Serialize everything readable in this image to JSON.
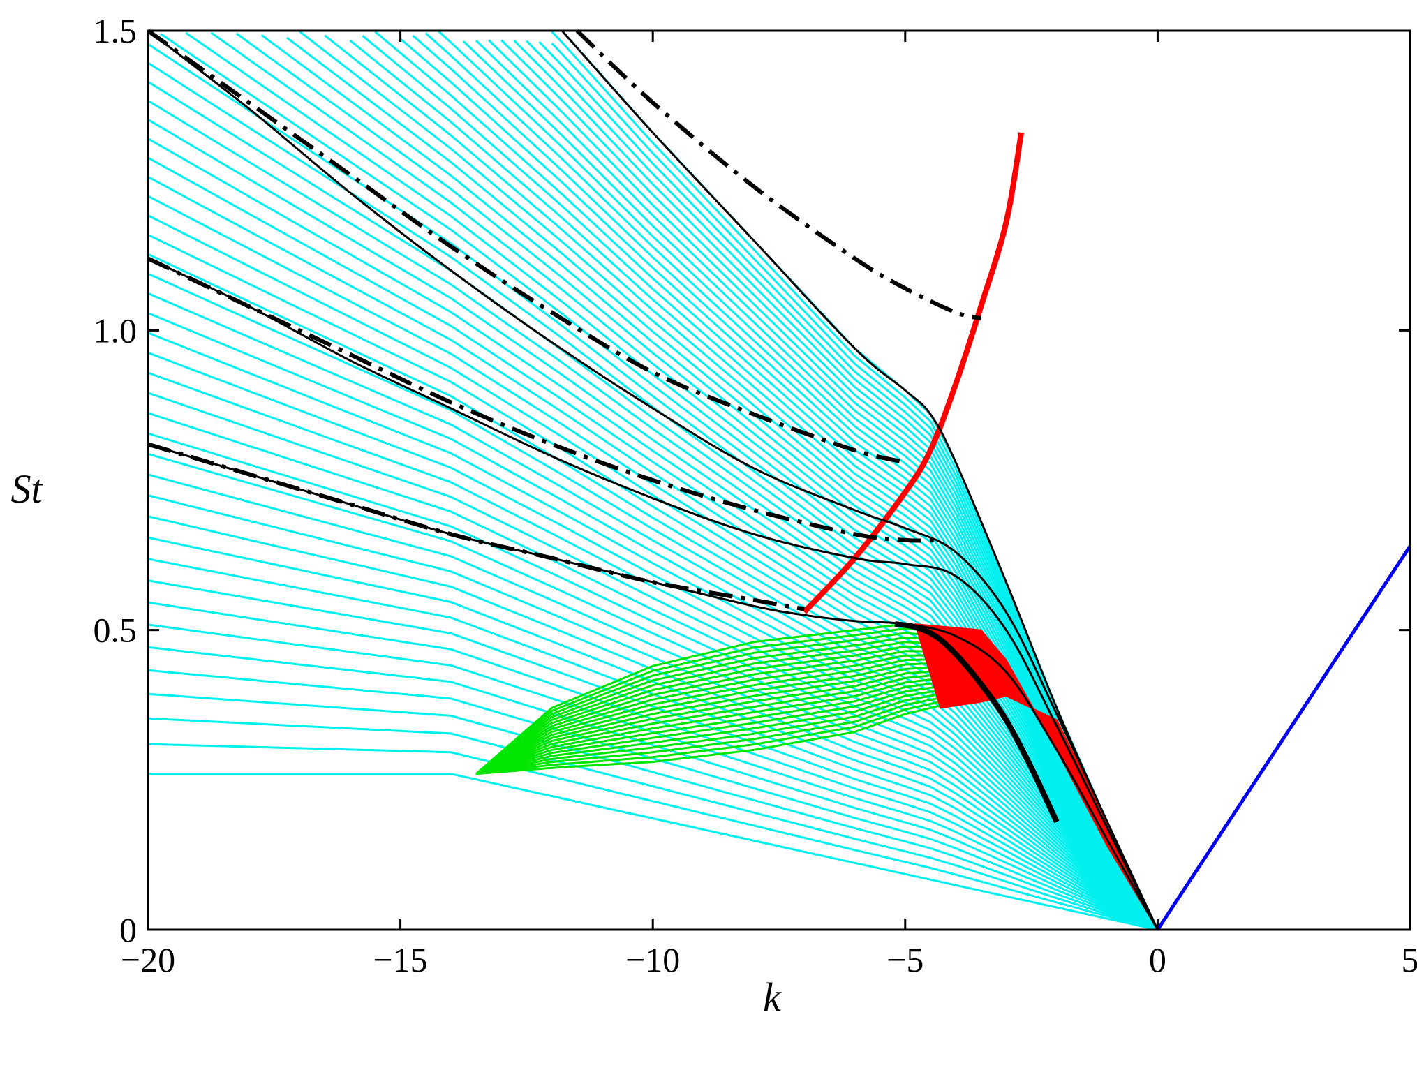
{
  "chart_data": {
    "type": "line",
    "xlabel": "k",
    "ylabel": "St",
    "xlim": [
      -20,
      5
    ],
    "ylim": [
      0,
      1.5
    ],
    "xticks": [
      -20,
      -15,
      -10,
      -5,
      0,
      5
    ],
    "xtick_labels": [
      "−20",
      "−15",
      "−10",
      "−5",
      "0",
      "5"
    ],
    "yticks": [
      0,
      0.5,
      1.0,
      1.5
    ],
    "ytick_labels": [
      "0",
      "0.5",
      "1.0",
      "1.5"
    ],
    "grid": false,
    "colors": {
      "cyan": "#00f0f0",
      "green": "#00e600",
      "red": "#ff0000",
      "black": "#000000",
      "blue": "#0000ee"
    },
    "series": [
      {
        "color": "cyan",
        "style": "family of thin solid lines (upper envelope)",
        "points": [
          [
            -11.8,
            1.5
          ],
          [
            -10,
            1.33
          ],
          [
            -8,
            1.15
          ],
          [
            -6,
            0.97
          ],
          [
            -5,
            0.9
          ],
          [
            -4.5,
            0.86
          ],
          [
            -4,
            0.78
          ],
          [
            -3,
            0.58
          ],
          [
            -2,
            0.37
          ],
          [
            -1,
            0.18
          ],
          [
            0,
            0
          ]
        ]
      },
      {
        "color": "cyan",
        "style": "family of thin solid lines (lower envelope)",
        "points": [
          [
            -20,
            0.27
          ],
          [
            -18,
            0.265
          ],
          [
            -16,
            0.26
          ],
          [
            -14,
            0.26
          ]
        ]
      },
      {
        "color": "green",
        "style": "family of thin solid lines (upper envelope)",
        "points": [
          [
            -13.5,
            0.26
          ],
          [
            -12,
            0.37
          ],
          [
            -10,
            0.44
          ],
          [
            -8,
            0.48
          ],
          [
            -6,
            0.5
          ],
          [
            -5,
            0.51
          ],
          [
            -4,
            0.5
          ]
        ]
      },
      {
        "color": "green",
        "style": "family of thin solid lines (lower envelope)",
        "points": [
          [
            -13.5,
            0.26
          ],
          [
            -12,
            0.27
          ],
          [
            -10,
            0.28
          ],
          [
            -8,
            0.3
          ],
          [
            -6,
            0.33
          ],
          [
            -5,
            0.36
          ],
          [
            -4,
            0.38
          ]
        ]
      },
      {
        "color": "red",
        "style": "filled band",
        "points": [
          [
            -4.8,
            0.51
          ],
          [
            -3.5,
            0.5
          ],
          [
            -3,
            0.45
          ],
          [
            -2,
            0.3
          ],
          [
            -1,
            0.14
          ],
          [
            0,
            0
          ],
          [
            -1,
            0.18
          ],
          [
            -2,
            0.35
          ],
          [
            -3,
            0.39
          ],
          [
            -3.5,
            0.38
          ],
          [
            -4.3,
            0.37
          ]
        ]
      },
      {
        "color": "red",
        "style": "thick solid line",
        "points": [
          [
            -7,
            0.53
          ],
          [
            -6,
            0.62
          ],
          [
            -5,
            0.73
          ],
          [
            -4.5,
            0.8
          ],
          [
            -4,
            0.91
          ],
          [
            -3.5,
            1.04
          ],
          [
            -3,
            1.18
          ],
          [
            -2.7,
            1.33
          ]
        ]
      },
      {
        "color": "black",
        "style": "solid line",
        "points": [
          [
            -11.8,
            1.5
          ],
          [
            -10,
            1.33
          ],
          [
            -8,
            1.15
          ],
          [
            -6,
            0.97
          ],
          [
            -5,
            0.9
          ],
          [
            -4.5,
            0.86
          ],
          [
            -4,
            0.78
          ],
          [
            -3,
            0.58
          ],
          [
            -2,
            0.37
          ],
          [
            -1,
            0.18
          ],
          [
            0,
            0
          ]
        ]
      },
      {
        "color": "black",
        "style": "solid line",
        "points": [
          [
            -20,
            1.5
          ],
          [
            -18,
            1.37
          ],
          [
            -16,
            1.23
          ],
          [
            -14,
            1.1
          ],
          [
            -12,
            0.98
          ],
          [
            -10,
            0.87
          ],
          [
            -8,
            0.77
          ],
          [
            -6,
            0.7
          ],
          [
            -5,
            0.67
          ],
          [
            -4,
            0.63
          ],
          [
            -3,
            0.53
          ],
          [
            -2,
            0.36
          ],
          [
            -1,
            0.18
          ],
          [
            0,
            0
          ]
        ]
      },
      {
        "color": "black",
        "style": "solid line",
        "points": [
          [
            -20,
            1.12
          ],
          [
            -18,
            1.04
          ],
          [
            -16,
            0.95
          ],
          [
            -14,
            0.87
          ],
          [
            -12,
            0.79
          ],
          [
            -10,
            0.72
          ],
          [
            -8,
            0.66
          ],
          [
            -6,
            0.62
          ],
          [
            -5,
            0.61
          ],
          [
            -4,
            0.59
          ],
          [
            -3,
            0.5
          ],
          [
            -2,
            0.34
          ],
          [
            -1,
            0.17
          ],
          [
            0,
            0
          ]
        ]
      },
      {
        "color": "black",
        "style": "solid line",
        "points": [
          [
            -20,
            0.81
          ],
          [
            -18,
            0.76
          ],
          [
            -16,
            0.71
          ],
          [
            -14,
            0.66
          ],
          [
            -12,
            0.62
          ],
          [
            -10,
            0.58
          ],
          [
            -8,
            0.54
          ],
          [
            -7,
            0.525
          ],
          [
            -6,
            0.515
          ],
          [
            -5,
            0.51
          ],
          [
            -4,
            0.49
          ],
          [
            -3,
            0.43
          ],
          [
            -2,
            0.3
          ],
          [
            -1,
            0.15
          ],
          [
            0,
            0
          ]
        ]
      },
      {
        "color": "black",
        "style": "thick solid line",
        "points": [
          [
            -5.2,
            0.51
          ],
          [
            -4.8,
            0.505
          ],
          [
            -4.4,
            0.49
          ],
          [
            -4,
            0.46
          ],
          [
            -3.5,
            0.41
          ],
          [
            -3,
            0.35
          ],
          [
            -2.5,
            0.27
          ],
          [
            -2,
            0.18
          ]
        ]
      },
      {
        "color": "black",
        "style": "dash-dot line",
        "points": [
          [
            -11.5,
            1.5
          ],
          [
            -10,
            1.38
          ],
          [
            -8,
            1.24
          ],
          [
            -6,
            1.12
          ],
          [
            -5,
            1.07
          ],
          [
            -4,
            1.03
          ],
          [
            -3.5,
            1.02
          ]
        ]
      },
      {
        "color": "black",
        "style": "dash-dot line",
        "points": [
          [
            -20,
            1.5
          ],
          [
            -18,
            1.38
          ],
          [
            -16,
            1.26
          ],
          [
            -14,
            1.14
          ],
          [
            -12,
            1.03
          ],
          [
            -10,
            0.93
          ],
          [
            -8,
            0.86
          ],
          [
            -6,
            0.8
          ],
          [
            -5,
            0.78
          ]
        ]
      },
      {
        "color": "black",
        "style": "dash-dot line",
        "points": [
          [
            -20,
            1.12
          ],
          [
            -18,
            1.04
          ],
          [
            -16,
            0.96
          ],
          [
            -14,
            0.88
          ],
          [
            -12,
            0.81
          ],
          [
            -10,
            0.75
          ],
          [
            -8,
            0.7
          ],
          [
            -6,
            0.66
          ],
          [
            -5,
            0.65
          ],
          [
            -4.3,
            0.65
          ]
        ]
      },
      {
        "color": "black",
        "style": "dash-dot line",
        "points": [
          [
            -20,
            0.81
          ],
          [
            -18,
            0.76
          ],
          [
            -16,
            0.71
          ],
          [
            -14,
            0.66
          ],
          [
            -12,
            0.62
          ],
          [
            -10,
            0.58
          ],
          [
            -8,
            0.55
          ],
          [
            -7,
            0.535
          ]
        ]
      },
      {
        "color": "blue",
        "style": "solid line",
        "points": [
          [
            0,
            0
          ],
          [
            5,
            0.64
          ]
        ]
      }
    ]
  }
}
